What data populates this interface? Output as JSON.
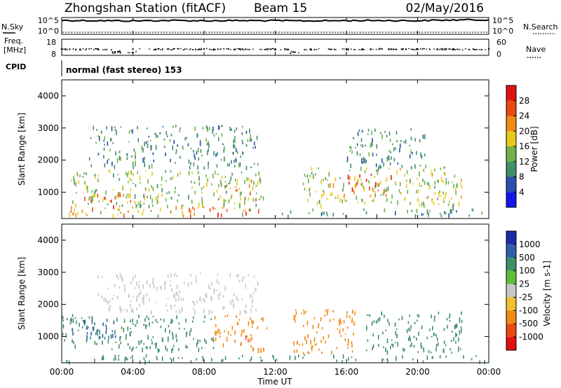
{
  "header": {
    "station": "Zhongshan Station (fitACF)",
    "beam": "Beam 15",
    "date": "02/May/2016"
  },
  "top_panels": {
    "nsky_label": "N.Sky",
    "nsky_ticks": [
      "10^5",
      "10^0"
    ],
    "nsearch_label": "N.Search",
    "freq_label_1": "Freq.",
    "freq_label_2": "[MHz]",
    "freq_ticks": [
      "18",
      "8"
    ],
    "nave_label": "Nave",
    "nave_ticks": [
      "60",
      "0"
    ],
    "cpid_label": "CPID",
    "cpid_text": "normal (fast stereo) 153"
  },
  "x_axis": {
    "title": "Time UT",
    "ticks": [
      "00:00",
      "04:00",
      "08:00",
      "12:00",
      "16:00",
      "20:00",
      "00:00"
    ]
  },
  "power_panel": {
    "ylabel": "Slant Range [km]",
    "yticks": [
      "1000",
      "2000",
      "3000",
      "4000"
    ],
    "colorbar_label": "Power [dB]",
    "colorbar_ticks": [
      "4",
      "8",
      "12",
      "16",
      "20",
      "24",
      "28"
    ],
    "colors": [
      "#1515ee",
      "#2a4fae",
      "#3f8f6a",
      "#6fb04a",
      "#e8c81a",
      "#f08a16",
      "#e94a10",
      "#e01010"
    ]
  },
  "velocity_panel": {
    "ylabel": "Slant Range [km]",
    "yticks": [
      "1000",
      "2000",
      "3000",
      "4000"
    ],
    "colorbar_label": "Velocity [m s-1]",
    "colorbar_ticks": [
      "1000",
      "500",
      "100",
      "25",
      "-25",
      "-100",
      "-500",
      "-1000"
    ],
    "colors": [
      "#1a2aa8",
      "#2f5fa8",
      "#3f8f6a",
      "#5fbf3a",
      "#c8c8c8",
      "#f0c030",
      "#f08a16",
      "#e94a10",
      "#e01010"
    ]
  },
  "chart_data": [
    {
      "type": "line",
      "title": "N.Sky / N.Search",
      "xlabel": "Time UT",
      "xlim": [
        "00:00",
        "24:00"
      ],
      "y_scale": "log",
      "ylim": [
        1,
        100000
      ],
      "series": [
        {
          "name": "N.Sky",
          "x": [
            0,
            2,
            4,
            6,
            8,
            10,
            12,
            14,
            16,
            18,
            20,
            22,
            24
          ],
          "y": [
            30000,
            25000,
            20000,
            28000,
            22000,
            26000,
            24000,
            20000,
            25000,
            28000,
            22000,
            40000,
            50000
          ]
        },
        {
          "name": "N.Search",
          "x": [
            0,
            24
          ],
          "y": [
            1,
            1
          ]
        }
      ]
    },
    {
      "type": "scatter",
      "title": "Freq. [MHz] / Nave",
      "xlim": [
        "00:00",
        "24:00"
      ],
      "ylim": [
        8,
        18
      ],
      "series": [
        {
          "name": "Freq.",
          "x": [
            0,
            2,
            3,
            4,
            6,
            8,
            10,
            12,
            13,
            14,
            16,
            18,
            20,
            22,
            24
          ],
          "y": [
            12,
            12,
            10,
            12,
            12,
            12,
            12,
            12,
            10,
            12,
            12,
            12,
            12,
            12,
            12
          ]
        }
      ]
    },
    {
      "type": "heatmap",
      "title": "Power [dB]",
      "xlabel": "Time UT",
      "ylabel": "Slant Range [km]",
      "xlim": [
        0,
        24
      ],
      "ylim": [
        180,
        4500
      ],
      "colorbar_ticks": [
        4,
        8,
        12,
        16,
        20,
        24,
        28
      ],
      "regions": [
        {
          "t0": 0.0,
          "t1": 11.5,
          "r0": 300,
          "r1": 600,
          "value": 22
        },
        {
          "t0": 0.5,
          "t1": 11.5,
          "r0": 600,
          "r1": 1700,
          "value": 14
        },
        {
          "t0": 1.0,
          "t1": 4.0,
          "r0": 700,
          "r1": 1000,
          "value": 24
        },
        {
          "t0": 9.0,
          "t1": 11.0,
          "r0": 800,
          "r1": 1400,
          "value": 20
        },
        {
          "t0": 1.5,
          "t1": 11.0,
          "r0": 1800,
          "r1": 3100,
          "value": 10
        },
        {
          "t0": 13.5,
          "t1": 22.5,
          "r0": 600,
          "r1": 1800,
          "value": 16
        },
        {
          "t0": 16.0,
          "t1": 18.5,
          "r0": 1000,
          "r1": 1600,
          "value": 24
        },
        {
          "t0": 16.0,
          "t1": 20.5,
          "r0": 1800,
          "r1": 3000,
          "value": 10
        },
        {
          "t0": 12.0,
          "t1": 24.0,
          "r0": 300,
          "r1": 500,
          "value": 10
        }
      ]
    },
    {
      "type": "heatmap",
      "title": "Velocity [m s-1]",
      "xlabel": "Time UT",
      "ylabel": "Slant Range [km]",
      "xlim": [
        0,
        24
      ],
      "ylim": [
        180,
        4500
      ],
      "colorbar_ticks": [
        1000,
        500,
        100,
        25,
        -25,
        -100,
        -500,
        -1000
      ],
      "regions": [
        {
          "t0": 0.0,
          "t1": 8.5,
          "r0": 600,
          "r1": 1700,
          "value": 300
        },
        {
          "t0": 0.5,
          "t1": 3.0,
          "r0": 1000,
          "r1": 1600,
          "value": 800
        },
        {
          "t0": 8.5,
          "t1": 11.5,
          "r0": 600,
          "r1": 1700,
          "value": -400
        },
        {
          "t0": 2.0,
          "t1": 11.0,
          "r0": 1800,
          "r1": 3000,
          "value": 10
        },
        {
          "t0": 13.0,
          "t1": 16.5,
          "r0": 500,
          "r1": 1900,
          "value": -300
        },
        {
          "t0": 17.0,
          "t1": 22.5,
          "r0": 500,
          "r1": 1800,
          "value": 300
        },
        {
          "t0": 0.0,
          "t1": 24.0,
          "r0": 250,
          "r1": 450,
          "value": 200
        }
      ]
    }
  ]
}
